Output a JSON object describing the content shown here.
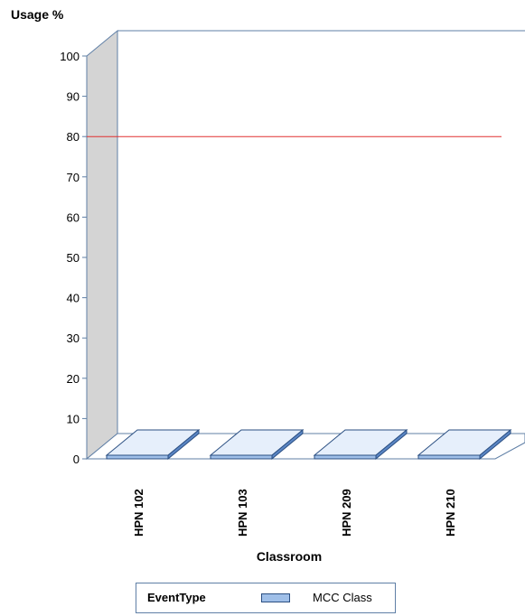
{
  "chart_data": {
    "type": "bar",
    "title": "",
    "ylabel": "Usage %",
    "xlabel": "Classroom",
    "categories": [
      "HPN 102",
      "HPN 103",
      "HPN 209",
      "HPN 210"
    ],
    "series": [
      {
        "name": "MCC Class",
        "values": [
          0,
          0,
          0,
          0
        ]
      }
    ],
    "ylim": [
      0,
      100
    ],
    "yticks": [
      0,
      10,
      20,
      30,
      40,
      50,
      60,
      70,
      80,
      90,
      100
    ],
    "reference_line": {
      "value": 80,
      "color": "#e03030"
    },
    "bar_color": "#9fbfe8",
    "three_d": true,
    "grid": false,
    "legend": {
      "title": "EventType",
      "placement": "bottom"
    }
  }
}
